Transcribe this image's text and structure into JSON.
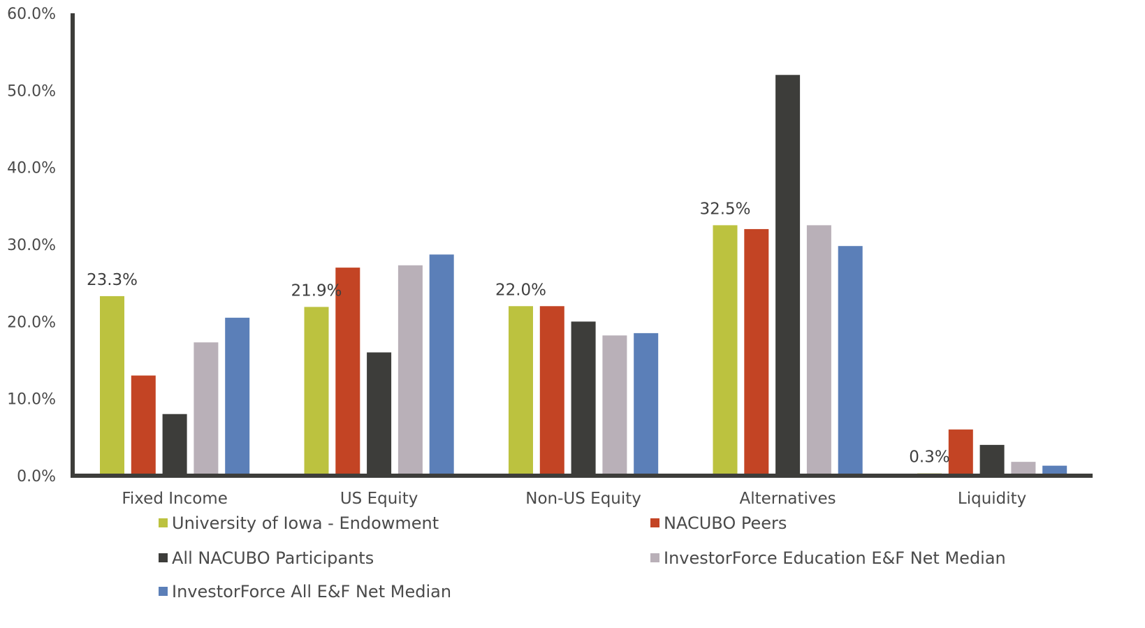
{
  "chart_data": {
    "type": "bar",
    "categories": [
      "Fixed Income",
      "US Equity",
      "Non-US Equity",
      "Alternatives",
      "Liquidity"
    ],
    "series": [
      {
        "name": "University of Iowa - Endowment",
        "color": "#bcc23f",
        "values": [
          23.3,
          21.9,
          22.0,
          32.5,
          0.3
        ]
      },
      {
        "name": "NACUBO Peers",
        "color": "#c34424",
        "values": [
          13.0,
          27.0,
          22.0,
          32.0,
          6.0
        ]
      },
      {
        "name": "All NACUBO Participants",
        "color": "#3d3d3a",
        "values": [
          8.0,
          16.0,
          20.0,
          52.0,
          4.0
        ]
      },
      {
        "name": "InvestorForce Education E&F Net Median",
        "color": "#b9b0b8",
        "values": [
          17.3,
          27.3,
          18.2,
          32.5,
          1.8
        ]
      },
      {
        "name": "InvestorForce All E&F Net Median",
        "color": "#5b7fb8",
        "values": [
          20.5,
          28.7,
          18.5,
          29.8,
          1.3
        ]
      }
    ],
    "data_labels": [
      {
        "category": "Fixed Income",
        "series": "University of Iowa - Endowment",
        "text": "23.3%"
      },
      {
        "category": "US Equity",
        "series": "University of Iowa - Endowment",
        "text": "21.9%"
      },
      {
        "category": "Non-US Equity",
        "series": "University of Iowa - Endowment",
        "text": "22.0%"
      },
      {
        "category": "Alternatives",
        "series": "University of Iowa - Endowment",
        "text": "32.5%"
      },
      {
        "category": "Liquidity",
        "series": "University of Iowa - Endowment",
        "text": "0.3%"
      }
    ],
    "yticks": [
      "0.0%",
      "10.0%",
      "20.0%",
      "30.0%",
      "40.0%",
      "50.0%",
      "60.0%"
    ],
    "ylim": [
      0,
      60
    ],
    "grid": false,
    "legend": "bottom",
    "title": "",
    "xlabel": "",
    "ylabel": ""
  }
}
